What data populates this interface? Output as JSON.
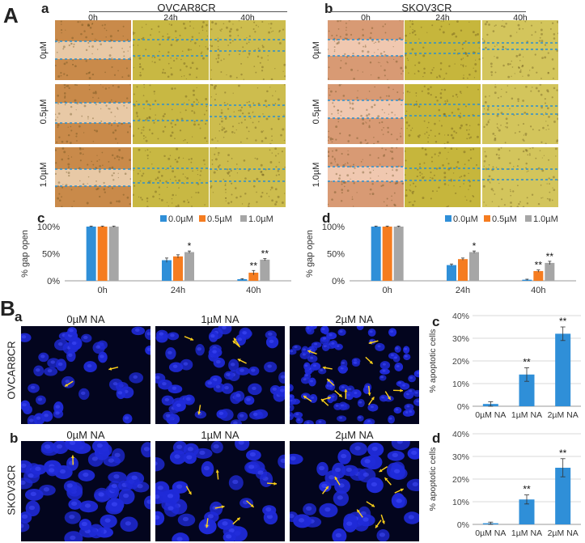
{
  "panel_labels": {
    "A": "A",
    "B": "B",
    "Aa": "a",
    "Ab": "b",
    "Ac": "c",
    "Ad": "d",
    "Ba": "a",
    "Bb": "b",
    "Bc": "c",
    "Bd": "d"
  },
  "scratch": {
    "columns": [
      "0h",
      "24h",
      "40h"
    ],
    "rows": [
      "0µM",
      "0.5µM",
      "1.0µM"
    ],
    "a_title": "OVCAR8CR",
    "b_title": "SKOV3CR"
  },
  "fluor": {
    "columns": [
      "0µM NA",
      "1µM NA",
      "2µM NA"
    ],
    "row_a": "OVCAR8CR",
    "row_b": "SKOV3CR"
  },
  "colors": {
    "blue": "#2f8fd8",
    "orange": "#f57c20",
    "gray": "#a6a6a6"
  },
  "chart_data": [
    {
      "id": "Ac",
      "type": "bar",
      "title": "",
      "ylabel": "% gap open",
      "ylim": [
        0,
        100
      ],
      "yticks": [
        "0%",
        "50%",
        "100%"
      ],
      "categories": [
        "0h",
        "24h",
        "40h"
      ],
      "legend": [
        "0.0µM",
        "0.5µM",
        "1.0µM"
      ],
      "series": [
        {
          "name": "0.0µM",
          "values": [
            100,
            38,
            3
          ]
        },
        {
          "name": "0.5µM",
          "values": [
            100,
            45,
            15
          ]
        },
        {
          "name": "1.0µM",
          "values": [
            100,
            53,
            39
          ]
        }
      ],
      "errors": [
        [
          1,
          4,
          1
        ],
        [
          1,
          3,
          4
        ],
        [
          1,
          2,
          2
        ]
      ],
      "annotations": [
        {
          "cat": 1,
          "series": 2,
          "text": "*"
        },
        {
          "cat": 2,
          "series": 1,
          "text": "**"
        },
        {
          "cat": 2,
          "series": 2,
          "text": "**"
        }
      ]
    },
    {
      "id": "Ad",
      "type": "bar",
      "title": "",
      "ylabel": "% gap open",
      "ylim": [
        0,
        100
      ],
      "yticks": [
        "0%",
        "50%",
        "100%"
      ],
      "categories": [
        "0h",
        "24h",
        "40h"
      ],
      "legend": [
        "0.0µM",
        "0.5µM",
        "1.0µM"
      ],
      "series": [
        {
          "name": "0.0µM",
          "values": [
            100,
            29,
            2
          ]
        },
        {
          "name": "0.5µM",
          "values": [
            100,
            40,
            18
          ]
        },
        {
          "name": "1.0µM",
          "values": [
            100,
            53,
            33
          ]
        }
      ],
      "errors": [
        [
          1,
          2,
          1
        ],
        [
          1,
          2,
          2
        ],
        [
          1,
          2,
          3
        ]
      ],
      "annotations": [
        {
          "cat": 1,
          "series": 2,
          "text": "*"
        },
        {
          "cat": 2,
          "series": 1,
          "text": "**"
        },
        {
          "cat": 2,
          "series": 2,
          "text": "**"
        }
      ]
    },
    {
      "id": "Bc",
      "type": "bar",
      "title": "",
      "ylabel": "% apoptotic cells",
      "ylim": [
        0,
        40
      ],
      "yticks": [
        "0%",
        "10%",
        "20%",
        "30%",
        "40%"
      ],
      "categories": [
        "0µM NA",
        "1µM NA",
        "2µM NA"
      ],
      "values": [
        1,
        14,
        32
      ],
      "errors": [
        1,
        3,
        3
      ],
      "annotations": [
        {
          "cat": 1,
          "text": "**"
        },
        {
          "cat": 2,
          "text": "**"
        }
      ]
    },
    {
      "id": "Bd",
      "type": "bar",
      "title": "",
      "ylabel": "% apoptotic cells",
      "ylim": [
        0,
        40
      ],
      "yticks": [
        "0%",
        "10%",
        "20%",
        "30%",
        "40%"
      ],
      "categories": [
        "0µM NA",
        "1µM NA",
        "2µM NA"
      ],
      "values": [
        0.5,
        11,
        25
      ],
      "errors": [
        0.5,
        2,
        4
      ],
      "annotations": [
        {
          "cat": 1,
          "text": "**"
        },
        {
          "cat": 2,
          "text": "**"
        }
      ]
    }
  ]
}
